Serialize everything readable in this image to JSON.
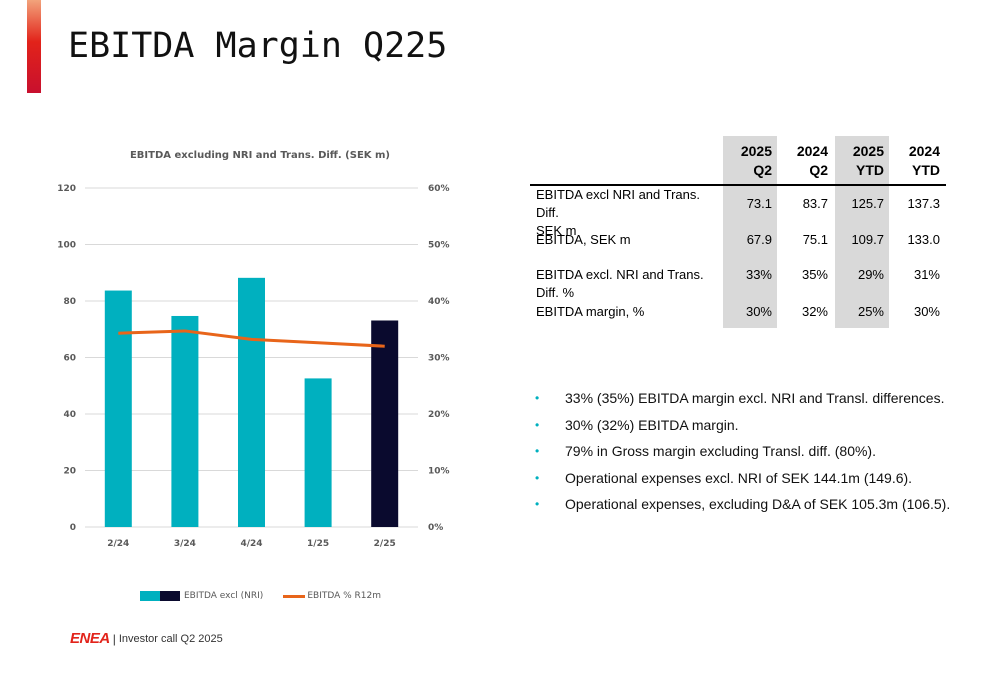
{
  "slide": {
    "title": "EBITDA Margin Q225"
  },
  "chart_data": {
    "type": "bar",
    "title": "EBITDA excluding NRI and Trans. Diff.  (SEK m)",
    "categories": [
      "2/24",
      "3/24",
      "4/24",
      "1/25",
      "2/25"
    ],
    "series": [
      {
        "name": "EBITDA  excl (NRI)",
        "type": "bar",
        "axis": "left",
        "values": [
          83.7,
          74.7,
          88.2,
          52.6,
          73.1
        ],
        "colors": [
          "#00b0bf",
          "#00b0bf",
          "#00b0bf",
          "#00b0bf",
          "#0a0a2e"
        ]
      },
      {
        "name": "EBITDA % R12m",
        "type": "line",
        "axis": "right",
        "values": [
          34.3,
          34.7,
          33.2,
          32.6,
          32.0
        ],
        "color": "#e8651a"
      }
    ],
    "y_left": {
      "ticks": [
        "0",
        "20",
        "40",
        "60",
        "80",
        "100",
        "120"
      ],
      "min": 0,
      "max": 120
    },
    "y_right": {
      "ticks": [
        "0%",
        "10%",
        "20%",
        "30%",
        "40%",
        "50%",
        "60%"
      ],
      "min": 0,
      "max": 60
    },
    "grid": true,
    "legend_position": "bottom"
  },
  "table": {
    "headers": [
      [
        "2025",
        "Q2"
      ],
      [
        "2024",
        "Q2"
      ],
      [
        "2025",
        "YTD"
      ],
      [
        "2024",
        "YTD"
      ]
    ],
    "rows": [
      {
        "label": "EBITDA excl NRI and Trans. Diff. SEK m",
        "label_lines": [
          "EBITDA excl NRI and Trans. Diff.",
          "SEK m"
        ],
        "values": [
          "73.1",
          "83.7",
          "125.7",
          "137.3"
        ]
      },
      {
        "label": "EBITDA, SEK m",
        "label_lines": [
          "EBITDA, SEK m"
        ],
        "values": [
          "67.9",
          "75.1",
          "109.7",
          "133.0"
        ]
      },
      {
        "label": "EBITDA excl. NRI and Trans. Diff. %",
        "label_lines": [
          "EBITDA excl. NRI and Trans. Diff. %"
        ],
        "values": [
          "33%",
          "35%",
          "29%",
          "31%"
        ]
      },
      {
        "label": "EBITDA margin, %",
        "label_lines": [
          "EBITDA margin, %"
        ],
        "values": [
          "30%",
          "32%",
          "25%",
          "30%"
        ]
      }
    ]
  },
  "bullets": [
    "33% (35%) EBITDA margin excl. NRI and Transl. differences.",
    "30% (32%) EBITDA margin.",
    "79% in Gross margin excluding Transl. diff. (80%).",
    "Operational expenses excl. NRI of SEK 144.1m (149.6).",
    "Operational expenses, excluding D&A of SEK 105.3m (106.5)."
  ],
  "footer": {
    "logo": "ENEA",
    "separator": "|",
    "text": "Investor call Q2 2025"
  },
  "colors": {
    "accent": "#e2231a",
    "bar": "#00b0bf",
    "bar_current": "#0a0a2e",
    "line": "#e8651a",
    "highlight_column": "#d9d9d9"
  }
}
